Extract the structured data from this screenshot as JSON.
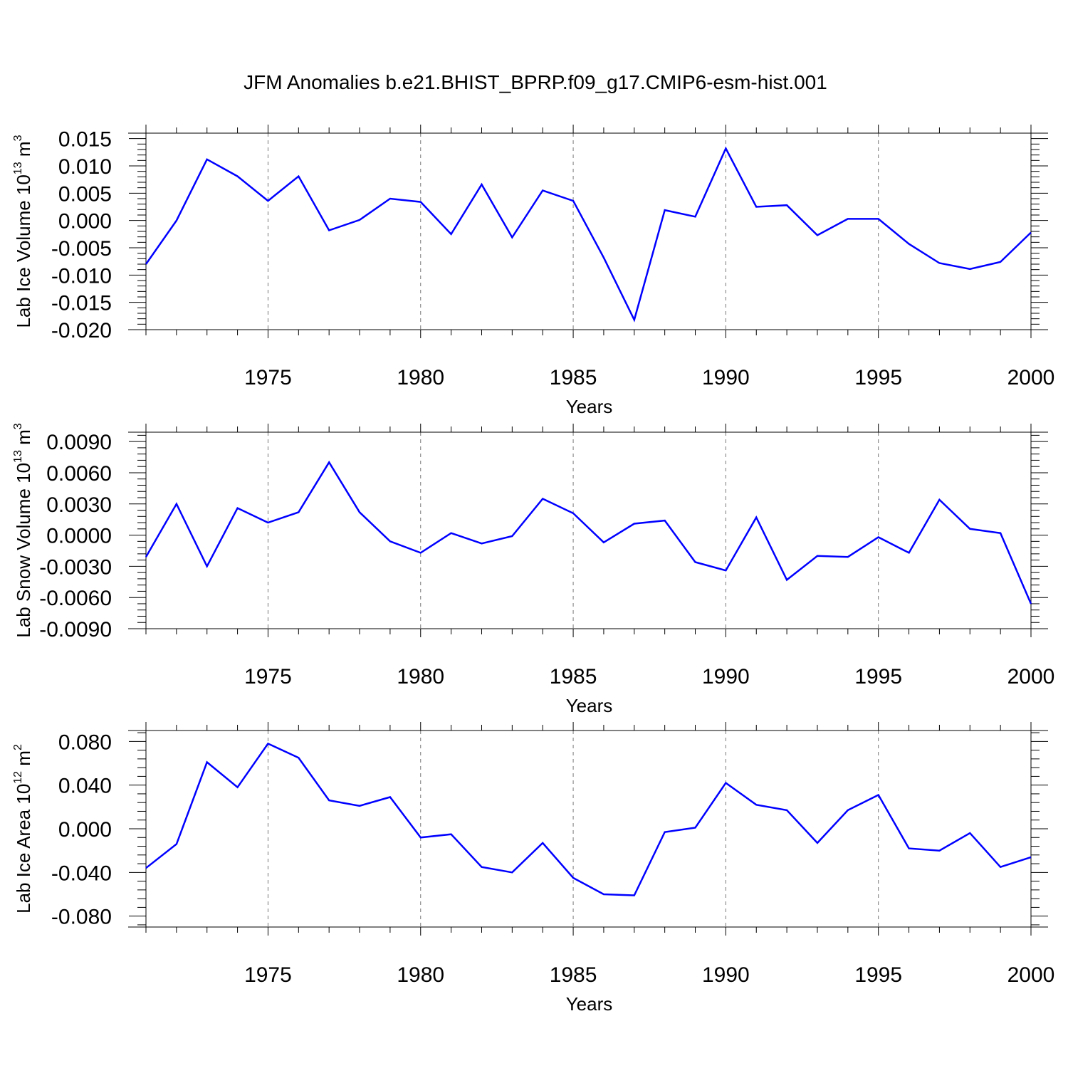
{
  "title": "JFM Anomalies b.e21.BHIST_BPRP.f09_g17.CMIP6-esm-hist.001",
  "colors": {
    "line": "#0000ff",
    "axis": "#000000",
    "grid": "#777777"
  },
  "chart_data": [
    {
      "type": "line",
      "title": "",
      "xlabel": "Years",
      "ylabel": "Lab Ice Volume",
      "ylabel_unit_base": "10",
      "ylabel_unit_exp": "13",
      "ylabel_unit_name": "m",
      "ylabel_unit_name_exp": "3",
      "xlim": [
        1971,
        2000
      ],
      "ylim": [
        -0.02,
        0.016
      ],
      "x_ticks": [
        1975,
        1980,
        1985,
        1990,
        1995,
        2000
      ],
      "x_tick_labels": [
        "1975",
        "1980",
        "1985",
        "1990",
        "1995",
        "2000"
      ],
      "y_ticks": [
        -0.02,
        -0.015,
        -0.01,
        -0.005,
        0.0,
        0.005,
        0.01,
        0.015
      ],
      "y_tick_labels": [
        "-0.020",
        "-0.015",
        "-0.010",
        "-0.005",
        "0.000",
        "0.005",
        "0.010",
        "0.015"
      ],
      "grid": "vertical dashed at major x ticks",
      "x": [
        1971,
        1972,
        1973,
        1974,
        1975,
        1976,
        1977,
        1978,
        1979,
        1980,
        1981,
        1982,
        1983,
        1984,
        1985,
        1986,
        1987,
        1988,
        1989,
        1990,
        1991,
        1992,
        1993,
        1994,
        1995,
        1996,
        1997,
        1998,
        1999,
        2000
      ],
      "series": [
        {
          "values": [
            -0.008,
            0.0,
            0.0112,
            0.0081,
            0.0036,
            0.0081,
            -0.0018,
            0.0001,
            0.004,
            0.0034,
            -0.0025,
            0.0066,
            -0.0031,
            0.0055,
            0.0036,
            -0.0068,
            -0.0182,
            0.0019,
            0.0007,
            0.0132,
            0.0025,
            0.0028,
            -0.0027,
            0.0003,
            0.0003,
            -0.0043,
            -0.0078,
            -0.0089,
            -0.0076,
            -0.0022
          ]
        }
      ]
    },
    {
      "type": "line",
      "title": "",
      "xlabel": "Years",
      "ylabel": "Lab Snow Volume",
      "ylabel_unit_base": "10",
      "ylabel_unit_exp": "13",
      "ylabel_unit_name": "m",
      "ylabel_unit_name_exp": "3",
      "xlim": [
        1971,
        2000
      ],
      "ylim": [
        -0.009,
        0.0099
      ],
      "x_ticks": [
        1975,
        1980,
        1985,
        1990,
        1995,
        2000
      ],
      "x_tick_labels": [
        "1975",
        "1980",
        "1985",
        "1990",
        "1995",
        "2000"
      ],
      "y_ticks": [
        -0.009,
        -0.006,
        -0.003,
        0.0,
        0.003,
        0.006,
        0.009
      ],
      "y_tick_labels": [
        "-0.0090",
        "-0.0060",
        "-0.0030",
        "0.0000",
        "0.0030",
        "0.0060",
        "0.0090"
      ],
      "grid": "vertical dashed at major x ticks",
      "x": [
        1971,
        1972,
        1973,
        1974,
        1975,
        1976,
        1977,
        1978,
        1979,
        1980,
        1981,
        1982,
        1983,
        1984,
        1985,
        1986,
        1987,
        1988,
        1989,
        1990,
        1991,
        1992,
        1993,
        1994,
        1995,
        1996,
        1997,
        1998,
        1999,
        2000
      ],
      "series": [
        {
          "values": [
            -0.0021,
            0.003,
            -0.003,
            0.0026,
            0.0012,
            0.0022,
            0.007,
            0.0022,
            -0.0006,
            -0.0017,
            0.0002,
            -0.0008,
            -0.0001,
            0.0035,
            0.0021,
            -0.0007,
            0.0011,
            0.0014,
            -0.0026,
            -0.0034,
            0.0017,
            -0.0043,
            -0.002,
            -0.0021,
            -0.0002,
            -0.0017,
            0.0034,
            0.0006,
            0.0002,
            -0.0066
          ]
        }
      ]
    },
    {
      "type": "line",
      "title": "",
      "xlabel": "Years",
      "ylabel": "Lab Ice Area",
      "ylabel_unit_base": "10",
      "ylabel_unit_exp": "12",
      "ylabel_unit_name": "m",
      "ylabel_unit_name_exp": "2",
      "xlim": [
        1971,
        2000
      ],
      "ylim": [
        -0.09,
        0.09
      ],
      "x_ticks": [
        1975,
        1980,
        1985,
        1990,
        1995,
        2000
      ],
      "x_tick_labels": [
        "1975",
        "1980",
        "1985",
        "1990",
        "1995",
        "2000"
      ],
      "y_ticks": [
        -0.08,
        -0.04,
        0.0,
        0.04,
        0.08
      ],
      "y_tick_labels": [
        "-0.080",
        "-0.040",
        "0.000",
        "0.040",
        "0.080"
      ],
      "grid": "vertical dashed at major x ticks",
      "x": [
        1971,
        1972,
        1973,
        1974,
        1975,
        1976,
        1977,
        1978,
        1979,
        1980,
        1981,
        1982,
        1983,
        1984,
        1985,
        1986,
        1987,
        1988,
        1989,
        1990,
        1991,
        1992,
        1993,
        1994,
        1995,
        1996,
        1997,
        1998,
        1999,
        2000
      ],
      "series": [
        {
          "values": [
            -0.036,
            -0.014,
            0.061,
            0.038,
            0.078,
            0.065,
            0.026,
            0.021,
            0.029,
            -0.008,
            -0.005,
            -0.035,
            -0.04,
            -0.013,
            -0.045,
            -0.06,
            -0.061,
            -0.003,
            0.001,
            0.042,
            0.022,
            0.017,
            -0.013,
            0.017,
            0.031,
            -0.018,
            -0.02,
            -0.004,
            -0.035,
            -0.026
          ]
        }
      ]
    }
  ]
}
